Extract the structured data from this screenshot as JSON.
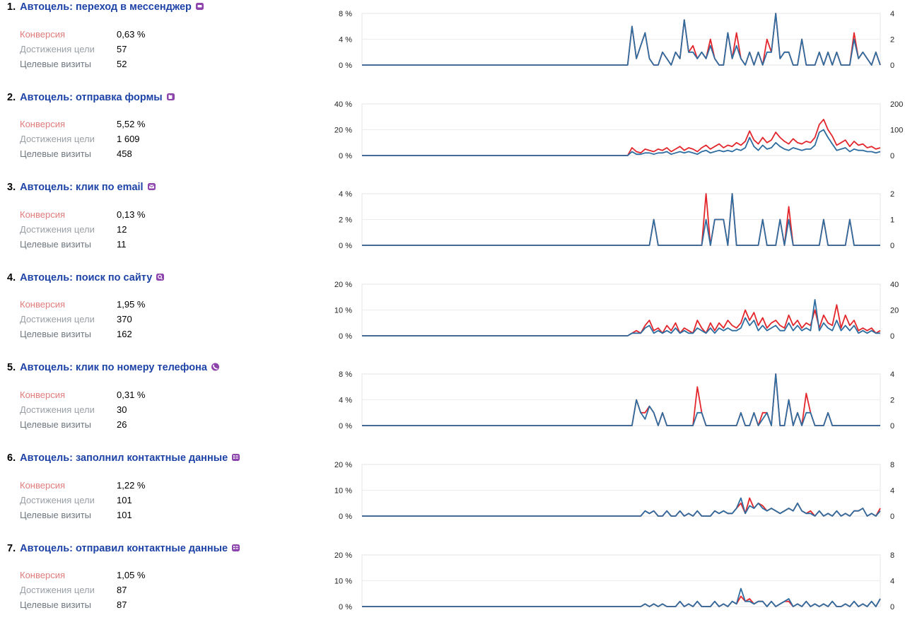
{
  "colors": {
    "title": "#1d43a6",
    "conversion_label": "#e07b7b",
    "reaches_label": "#9aa0a6",
    "visits_label": "#6f7780",
    "series_conversion": "#e3262b",
    "series_visits": "#2e6da0",
    "icon_bg": "#8e44ad"
  },
  "goals": [
    {
      "number": "1.",
      "name": "Автоцель: переход в мессенджер",
      "icon": "chat-icon",
      "metrics": [
        {
          "label": "Конверсия",
          "value": "0,63 %"
        },
        {
          "label": "Достижения цели",
          "value": "57"
        },
        {
          "label": "Целевые визиты",
          "value": "52"
        }
      ],
      "left_ticks": [
        "8 %",
        "4 %",
        "0 %"
      ],
      "right_ticks": [
        "4",
        "2",
        "0"
      ]
    },
    {
      "number": "2.",
      "name": "Автоцель: отправка формы",
      "icon": "form-icon",
      "metrics": [
        {
          "label": "Конверсия",
          "value": "5,52 %"
        },
        {
          "label": "Достижения цели",
          "value": "1 609"
        },
        {
          "label": "Целевые визиты",
          "value": "458"
        }
      ],
      "left_ticks": [
        "40 %",
        "20 %",
        "0 %"
      ],
      "right_ticks": [
        "200",
        "100",
        "0"
      ]
    },
    {
      "number": "3.",
      "name": "Автоцель: клик по email",
      "icon": "mail-icon",
      "metrics": [
        {
          "label": "Конверсия",
          "value": "0,13 %"
        },
        {
          "label": "Достижения цели",
          "value": "12"
        },
        {
          "label": "Целевые визиты",
          "value": "11"
        }
      ],
      "left_ticks": [
        "4 %",
        "2 %",
        "0 %"
      ],
      "right_ticks": [
        "2",
        "1",
        "0"
      ]
    },
    {
      "number": "4.",
      "name": "Автоцель: поиск по сайту",
      "icon": "search-icon",
      "metrics": [
        {
          "label": "Конверсия",
          "value": "1,95 %"
        },
        {
          "label": "Достижения цели",
          "value": "370"
        },
        {
          "label": "Целевые визиты",
          "value": "162"
        }
      ],
      "left_ticks": [
        "20 %",
        "10 %",
        "0 %"
      ],
      "right_ticks": [
        "40",
        "20",
        "0"
      ]
    },
    {
      "number": "5.",
      "name": "Автоцель: клик по номеру телефона",
      "icon": "phone-icon",
      "metrics": [
        {
          "label": "Конверсия",
          "value": "0,31 %"
        },
        {
          "label": "Достижения цели",
          "value": "30"
        },
        {
          "label": "Целевые визиты",
          "value": "26"
        }
      ],
      "left_ticks": [
        "8 %",
        "4 %",
        "0 %"
      ],
      "right_ticks": [
        "4",
        "2",
        "0"
      ]
    },
    {
      "number": "6.",
      "name": "Автоцель: заполнил контактные данные",
      "icon": "contact-card-icon",
      "metrics": [
        {
          "label": "Конверсия",
          "value": "1,22 %"
        },
        {
          "label": "Достижения цели",
          "value": "101"
        },
        {
          "label": "Целевые визиты",
          "value": "101"
        }
      ],
      "left_ticks": [
        "20 %",
        "10 %",
        "0 %"
      ],
      "right_ticks": [
        "8",
        "4",
        "0"
      ]
    },
    {
      "number": "7.",
      "name": "Автоцель: отправил контактные данные",
      "icon": "contact-card-icon",
      "metrics": [
        {
          "label": "Конверсия",
          "value": "1,05 %"
        },
        {
          "label": "Достижения цели",
          "value": "87"
        },
        {
          "label": "Целевые визиты",
          "value": "87"
        }
      ],
      "left_ticks": [
        "20 %",
        "10 %",
        "0 %"
      ],
      "right_ticks": [
        "8",
        "4",
        "0"
      ]
    }
  ],
  "chart_data": [
    {
      "type": "line",
      "left_ylim": [
        0,
        8
      ],
      "right_ylim": [
        0,
        4
      ],
      "n_points": 120,
      "series": [
        {
          "values": {
            "62": 6,
            "63": 1,
            "64": 3,
            "65": 5,
            "66": 1,
            "69": 2,
            "70": 1,
            "72": 2,
            "73": 1,
            "74": 7,
            "75": 2,
            "76": 3,
            "77": 1,
            "78": 2,
            "79": 1,
            "80": 4,
            "81": 1,
            "84": 5,
            "85": 1,
            "86": 5,
            "87": 1,
            "89": 2,
            "91": 2,
            "93": 4,
            "94": 2,
            "95": 8,
            "96": 1,
            "97": 2,
            "98": 2,
            "101": 4,
            "105": 2,
            "107": 2,
            "109": 2,
            "113": 5,
            "114": 1,
            "115": 2,
            "116": 1,
            "118": 2
          }
        },
        {
          "values": {
            "62": 6,
            "63": 1,
            "64": 3,
            "65": 5,
            "66": 1,
            "69": 2,
            "70": 1,
            "72": 2,
            "73": 1,
            "74": 7,
            "75": 2,
            "76": 2,
            "77": 1,
            "78": 2,
            "79": 1,
            "80": 3,
            "81": 1,
            "84": 5,
            "85": 1,
            "86": 3,
            "87": 1,
            "89": 2,
            "91": 2,
            "93": 2,
            "94": 2,
            "95": 8,
            "96": 1,
            "97": 2,
            "98": 2,
            "101": 4,
            "105": 2,
            "107": 2,
            "109": 2,
            "113": 4,
            "114": 1,
            "115": 2,
            "116": 1,
            "118": 2
          }
        }
      ]
    },
    {
      "type": "line",
      "left_ylim": [
        0,
        40
      ],
      "right_ylim": [
        0,
        200
      ],
      "n_points": 120,
      "series": [
        {
          "values": {
            "62": 6,
            "63": 3,
            "64": 2,
            "65": 5,
            "66": 4,
            "67": 3,
            "68": 5,
            "69": 4,
            "70": 6,
            "71": 3,
            "72": 5,
            "73": 7,
            "74": 4,
            "75": 6,
            "76": 5,
            "77": 3,
            "78": 6,
            "79": 8,
            "80": 5,
            "81": 7,
            "82": 9,
            "83": 6,
            "84": 8,
            "85": 7,
            "86": 10,
            "87": 8,
            "88": 11,
            "89": 19,
            "90": 12,
            "91": 9,
            "92": 14,
            "93": 10,
            "94": 12,
            "95": 18,
            "96": 14,
            "97": 11,
            "98": 9,
            "99": 13,
            "100": 10,
            "101": 9,
            "102": 11,
            "103": 10,
            "104": 14,
            "105": 24,
            "106": 28,
            "107": 20,
            "108": 15,
            "109": 8,
            "110": 10,
            "111": 12,
            "112": 7,
            "113": 11,
            "114": 8,
            "115": 9,
            "116": 6,
            "117": 7,
            "118": 5,
            "119": 6
          }
        },
        {
          "values": {
            "62": 3,
            "63": 1,
            "64": 1,
            "65": 2,
            "66": 2,
            "67": 1,
            "68": 2,
            "69": 2,
            "70": 3,
            "71": 1,
            "72": 2,
            "73": 3,
            "74": 2,
            "75": 3,
            "76": 2,
            "77": 1,
            "78": 3,
            "79": 4,
            "80": 2,
            "81": 3,
            "82": 4,
            "83": 3,
            "84": 4,
            "85": 3,
            "86": 5,
            "87": 4,
            "88": 6,
            "89": 14,
            "90": 7,
            "91": 4,
            "92": 8,
            "93": 5,
            "94": 6,
            "95": 10,
            "96": 7,
            "97": 5,
            "98": 4,
            "99": 6,
            "100": 5,
            "101": 4,
            "102": 5,
            "103": 5,
            "104": 8,
            "105": 18,
            "106": 20,
            "107": 14,
            "108": 9,
            "109": 4,
            "110": 5,
            "111": 6,
            "112": 3,
            "113": 5,
            "114": 4,
            "115": 4,
            "116": 3,
            "117": 3,
            "118": 2,
            "119": 3
          }
        }
      ]
    },
    {
      "type": "line",
      "left_ylim": [
        0,
        4
      ],
      "right_ylim": [
        0,
        2
      ],
      "n_points": 120,
      "series": [
        {
          "values": {
            "67": 2,
            "79": 4,
            "81": 2,
            "82": 2,
            "83": 2,
            "85": 4,
            "92": 2,
            "96": 2,
            "98": 3,
            "106": 2,
            "112": 2
          }
        },
        {
          "values": {
            "67": 2,
            "79": 2,
            "81": 2,
            "82": 2,
            "83": 2,
            "85": 4,
            "92": 2,
            "96": 2,
            "98": 2,
            "106": 2,
            "112": 2
          }
        }
      ]
    },
    {
      "type": "line",
      "left_ylim": [
        0,
        20
      ],
      "right_ylim": [
        0,
        40
      ],
      "n_points": 120,
      "series": [
        {
          "values": {
            "62": 1,
            "63": 2,
            "64": 1,
            "65": 4,
            "66": 6,
            "67": 2,
            "68": 3,
            "69": 1,
            "70": 4,
            "71": 2,
            "72": 5,
            "73": 1,
            "74": 3,
            "75": 2,
            "76": 1,
            "77": 6,
            "78": 3,
            "79": 1,
            "80": 5,
            "81": 2,
            "82": 5,
            "83": 3,
            "84": 6,
            "85": 4,
            "86": 3,
            "87": 5,
            "88": 10,
            "89": 6,
            "90": 9,
            "91": 4,
            "92": 7,
            "93": 3,
            "94": 5,
            "95": 6,
            "96": 4,
            "97": 3,
            "98": 8,
            "99": 4,
            "100": 6,
            "101": 3,
            "102": 5,
            "103": 4,
            "104": 10,
            "105": 3,
            "106": 8,
            "107": 5,
            "108": 4,
            "109": 12,
            "110": 3,
            "111": 8,
            "112": 4,
            "113": 6,
            "114": 2,
            "115": 3,
            "116": 2,
            "117": 3,
            "118": 1,
            "119": 2
          }
        },
        {
          "values": {
            "62": 1,
            "63": 1,
            "64": 1,
            "65": 3,
            "66": 4,
            "67": 1,
            "68": 2,
            "69": 1,
            "70": 2,
            "71": 1,
            "72": 3,
            "73": 1,
            "74": 2,
            "75": 1,
            "76": 1,
            "77": 3,
            "78": 2,
            "79": 1,
            "80": 3,
            "81": 1,
            "82": 3,
            "83": 2,
            "84": 3,
            "85": 2,
            "86": 2,
            "87": 3,
            "88": 7,
            "89": 4,
            "90": 6,
            "91": 2,
            "92": 4,
            "93": 2,
            "94": 3,
            "95": 4,
            "96": 2,
            "97": 2,
            "98": 5,
            "99": 2,
            "100": 4,
            "101": 2,
            "102": 3,
            "103": 2,
            "104": 14,
            "105": 2,
            "106": 5,
            "107": 3,
            "108": 2,
            "109": 6,
            "110": 2,
            "111": 4,
            "112": 2,
            "113": 4,
            "114": 1,
            "115": 2,
            "116": 1,
            "117": 2,
            "118": 1,
            "119": 1
          }
        }
      ]
    },
    {
      "type": "line",
      "left_ylim": [
        0,
        8
      ],
      "right_ylim": [
        0,
        4
      ],
      "n_points": 120,
      "series": [
        {
          "values": {
            "63": 4,
            "64": 2,
            "65": 2,
            "66": 3,
            "67": 2,
            "69": 2,
            "77": 6,
            "78": 2,
            "87": 2,
            "90": 2,
            "92": 2,
            "93": 2,
            "95": 8,
            "98": 4,
            "100": 2,
            "102": 5,
            "103": 2,
            "107": 2
          }
        },
        {
          "values": {
            "63": 4,
            "64": 2,
            "65": 1,
            "66": 3,
            "67": 2,
            "69": 2,
            "77": 2,
            "78": 2,
            "87": 2,
            "90": 2,
            "92": 1,
            "93": 2,
            "95": 8,
            "98": 4,
            "100": 2,
            "102": 2,
            "103": 2,
            "107": 2
          }
        }
      ]
    },
    {
      "type": "line",
      "left_ylim": [
        0,
        20
      ],
      "right_ylim": [
        0,
        8
      ],
      "n_points": 120,
      "series": [
        {
          "values": {
            "65": 2,
            "66": 1,
            "67": 2,
            "70": 2,
            "73": 2,
            "75": 1,
            "77": 2,
            "81": 2,
            "82": 1,
            "83": 2,
            "84": 1,
            "85": 1,
            "86": 3,
            "87": 5,
            "88": 1,
            "89": 7,
            "90": 3,
            "91": 5,
            "92": 4,
            "93": 2,
            "94": 3,
            "95": 2,
            "96": 1,
            "97": 2,
            "98": 3,
            "99": 2,
            "100": 5,
            "101": 2,
            "102": 1,
            "103": 2,
            "105": 2,
            "107": 1,
            "109": 2,
            "111": 1,
            "113": 2,
            "114": 2,
            "115": 3,
            "117": 1,
            "119": 3
          }
        },
        {
          "values": {
            "65": 2,
            "66": 1,
            "67": 2,
            "70": 2,
            "73": 2,
            "75": 1,
            "77": 2,
            "81": 2,
            "82": 1,
            "83": 2,
            "84": 1,
            "85": 1,
            "86": 3,
            "87": 7,
            "88": 1,
            "89": 4,
            "90": 3,
            "91": 5,
            "92": 3,
            "93": 2,
            "94": 3,
            "95": 2,
            "96": 1,
            "97": 2,
            "98": 3,
            "99": 2,
            "100": 5,
            "101": 2,
            "102": 1,
            "103": 1,
            "105": 2,
            "107": 1,
            "109": 2,
            "111": 1,
            "113": 2,
            "114": 2,
            "115": 3,
            "117": 1,
            "119": 2
          }
        }
      ]
    },
    {
      "type": "line",
      "left_ylim": [
        0,
        20
      ],
      "right_ylim": [
        0,
        8
      ],
      "n_points": 120,
      "series": [
        {
          "values": {
            "65": 1,
            "67": 1,
            "69": 1,
            "73": 2,
            "75": 1,
            "77": 2,
            "81": 2,
            "83": 1,
            "85": 2,
            "86": 1,
            "87": 4,
            "88": 2,
            "89": 3,
            "90": 1,
            "91": 2,
            "92": 2,
            "94": 2,
            "96": 1,
            "97": 2,
            "98": 2,
            "100": 1,
            "102": 2,
            "104": 1,
            "106": 1,
            "108": 2,
            "111": 1,
            "113": 2,
            "115": 1,
            "117": 2,
            "119": 3
          }
        },
        {
          "values": {
            "65": 1,
            "67": 1,
            "69": 1,
            "73": 2,
            "75": 1,
            "77": 2,
            "81": 2,
            "83": 1,
            "85": 2,
            "86": 1,
            "87": 7,
            "88": 2,
            "89": 2,
            "90": 1,
            "91": 2,
            "92": 2,
            "94": 2,
            "96": 1,
            "97": 2,
            "98": 3,
            "100": 1,
            "102": 2,
            "104": 1,
            "106": 1,
            "108": 2,
            "111": 1,
            "113": 2,
            "115": 1,
            "117": 2,
            "119": 3
          }
        }
      ]
    }
  ]
}
